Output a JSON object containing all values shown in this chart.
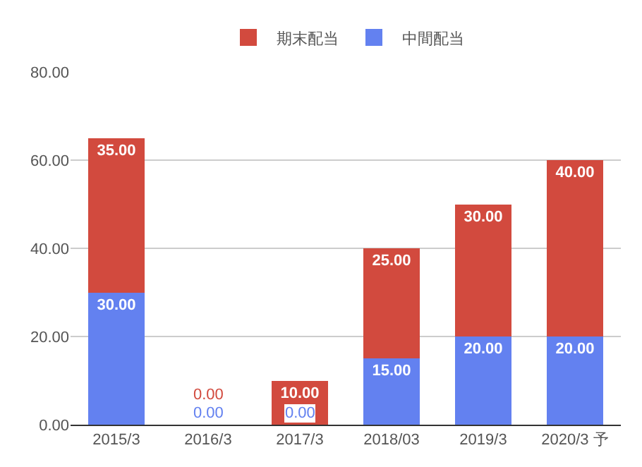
{
  "chart_data": {
    "type": "bar",
    "stacked": true,
    "categories": [
      "2015/3",
      "2016/3",
      "2017/3",
      "2018/03",
      "2019/3",
      "2020/3 予"
    ],
    "series": [
      {
        "name": "中間配当",
        "color": "#6381f0",
        "values": [
          30,
          0,
          0,
          15,
          20,
          20
        ],
        "value_labels": [
          "30.00",
          "0.00",
          "0.00",
          "15.00",
          "20.00",
          "20.00"
        ]
      },
      {
        "name": "期末配当",
        "color": "#d24a3e",
        "values": [
          35,
          0,
          10,
          25,
          30,
          40
        ],
        "value_labels": [
          "35.00",
          "0.00",
          "10.00",
          "25.00",
          "30.00",
          "40.00"
        ]
      }
    ],
    "ylim": [
      0,
      80
    ],
    "yticks": [
      {
        "value": 0,
        "label": "0.00"
      },
      {
        "value": 20,
        "label": "20.00"
      },
      {
        "value": 40,
        "label": "40.00"
      },
      {
        "value": 60,
        "label": "60.00"
      },
      {
        "value": 80,
        "label": "80.00"
      }
    ],
    "grid": "y",
    "legend": "top"
  }
}
